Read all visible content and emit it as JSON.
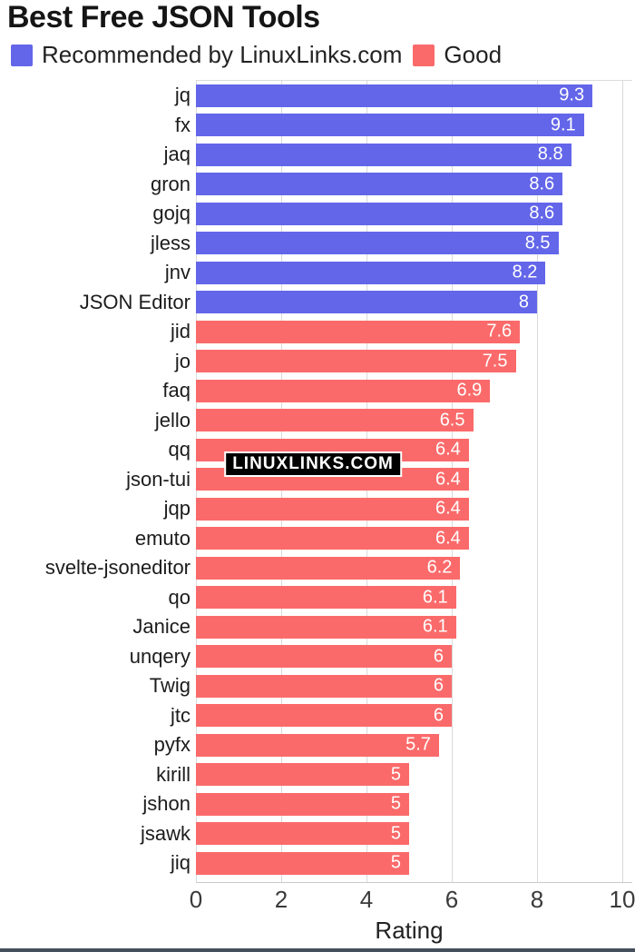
{
  "title": "Best Free JSON Tools",
  "legend": {
    "items": [
      {
        "label": "Recommended by LinuxLinks.com",
        "color": "#6366E9"
      },
      {
        "label": "Good",
        "color": "#FB6A6A"
      }
    ]
  },
  "watermark": "LINUXLINKS.COM",
  "colors": {
    "recommended": "#6366E9",
    "good": "#FB6A6A",
    "gridline": "#d9d9d9",
    "value_text": "#ffffff"
  },
  "chart_data": {
    "type": "bar",
    "orientation": "horizontal",
    "title": "Best Free JSON Tools",
    "xlabel": "Rating",
    "ylabel": "",
    "xlim": [
      0,
      10
    ],
    "xticks": [
      0,
      2,
      4,
      6,
      8,
      10
    ],
    "grid": true,
    "legend_position": "top-left",
    "series": [
      {
        "name": "Recommended by LinuxLinks.com",
        "color": "#6366E9"
      },
      {
        "name": "Good",
        "color": "#FB6A6A"
      }
    ],
    "bars": [
      {
        "label": "jq",
        "value": 9.3,
        "display": "9.3",
        "series": 0
      },
      {
        "label": "fx",
        "value": 9.1,
        "display": "9.1",
        "series": 0
      },
      {
        "label": "jaq",
        "value": 8.8,
        "display": "8.8",
        "series": 0
      },
      {
        "label": "gron",
        "value": 8.6,
        "display": "8.6",
        "series": 0
      },
      {
        "label": "gojq",
        "value": 8.6,
        "display": "8.6",
        "series": 0
      },
      {
        "label": "jless",
        "value": 8.5,
        "display": "8.5",
        "series": 0
      },
      {
        "label": "jnv",
        "value": 8.2,
        "display": "8.2",
        "series": 0
      },
      {
        "label": "JSON Editor",
        "value": 8,
        "display": "8",
        "series": 0
      },
      {
        "label": "jid",
        "value": 7.6,
        "display": "7.6",
        "series": 1
      },
      {
        "label": "jo",
        "value": 7.5,
        "display": "7.5",
        "series": 1
      },
      {
        "label": "faq",
        "value": 6.9,
        "display": "6.9",
        "series": 1
      },
      {
        "label": "jello",
        "value": 6.5,
        "display": "6.5",
        "series": 1
      },
      {
        "label": "qq",
        "value": 6.4,
        "display": "6.4",
        "series": 1
      },
      {
        "label": "json-tui",
        "value": 6.4,
        "display": "6.4",
        "series": 1
      },
      {
        "label": "jqp",
        "value": 6.4,
        "display": "6.4",
        "series": 1
      },
      {
        "label": "emuto",
        "value": 6.4,
        "display": "6.4",
        "series": 1
      },
      {
        "label": "svelte-jsoneditor",
        "value": 6.2,
        "display": "6.2",
        "series": 1
      },
      {
        "label": "qo",
        "value": 6.1,
        "display": "6.1",
        "series": 1
      },
      {
        "label": "Janice",
        "value": 6.1,
        "display": "6.1",
        "series": 1
      },
      {
        "label": "unqery",
        "value": 6,
        "display": "6",
        "series": 1
      },
      {
        "label": "Twig",
        "value": 6,
        "display": "6",
        "series": 1
      },
      {
        "label": "jtc",
        "value": 6,
        "display": "6",
        "series": 1
      },
      {
        "label": "pyfx",
        "value": 5.7,
        "display": "5.7",
        "series": 1
      },
      {
        "label": "kirill",
        "value": 5,
        "display": "5",
        "series": 1
      },
      {
        "label": "jshon",
        "value": 5,
        "display": "5",
        "series": 1
      },
      {
        "label": "jsawk",
        "value": 5,
        "display": "5",
        "series": 1
      },
      {
        "label": "jiq",
        "value": 5,
        "display": "5",
        "series": 1
      }
    ]
  }
}
